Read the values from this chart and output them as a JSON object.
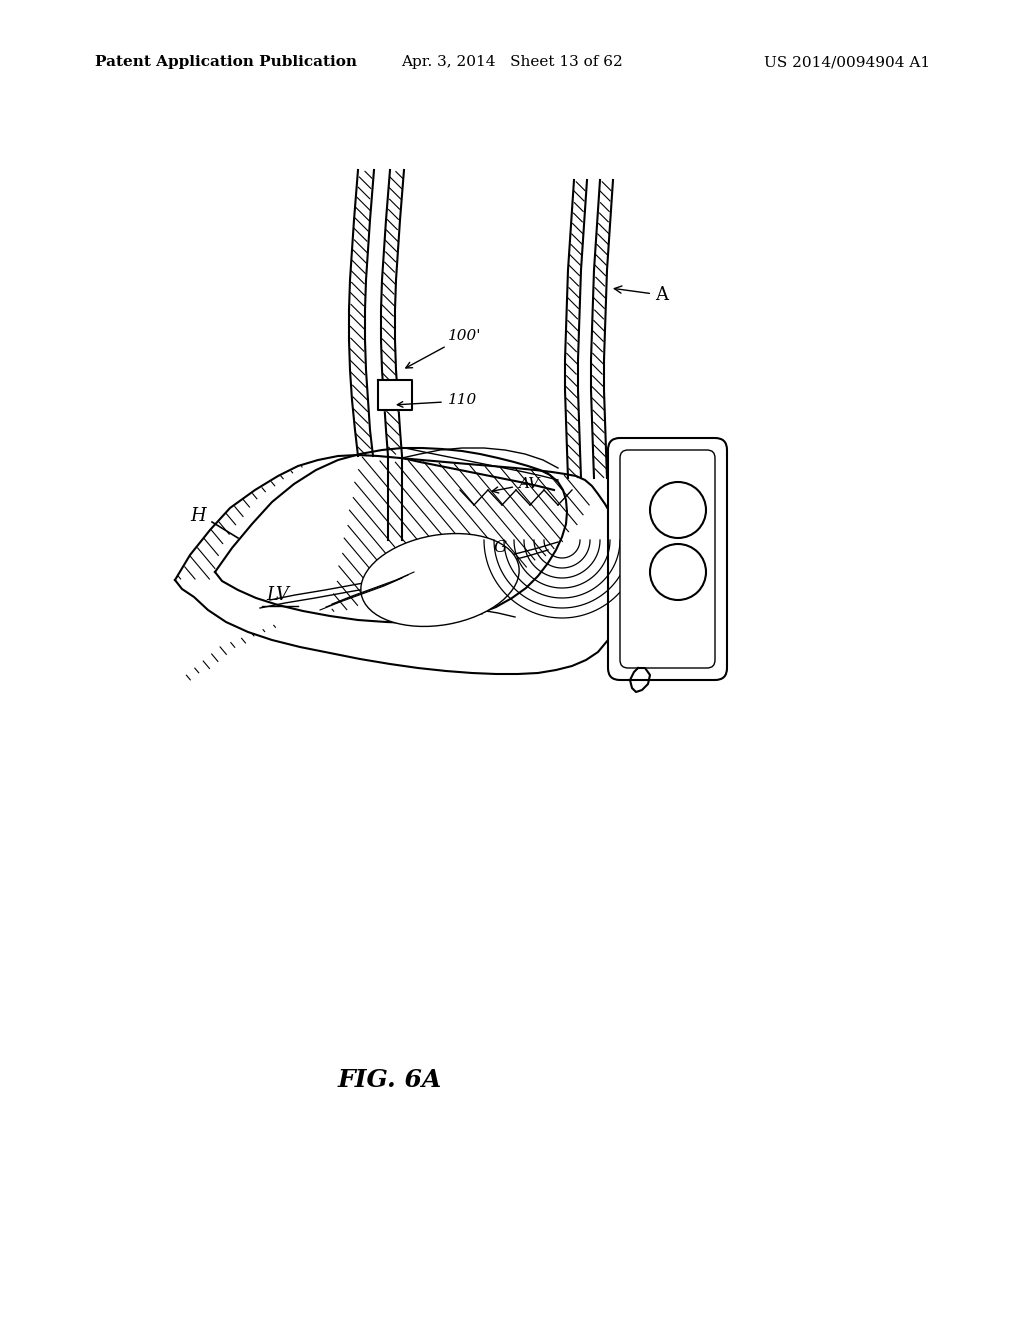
{
  "header_left": "Patent Application Publication",
  "header_mid": "Apr. 3, 2014   Sheet 13 of 62",
  "header_right": "US 2014/0094904 A1",
  "figure_label": "FIG. 6A",
  "background_color": "#ffffff",
  "line_color": "#000000",
  "fig_label_fontsize": 18,
  "header_fontsize": 11
}
